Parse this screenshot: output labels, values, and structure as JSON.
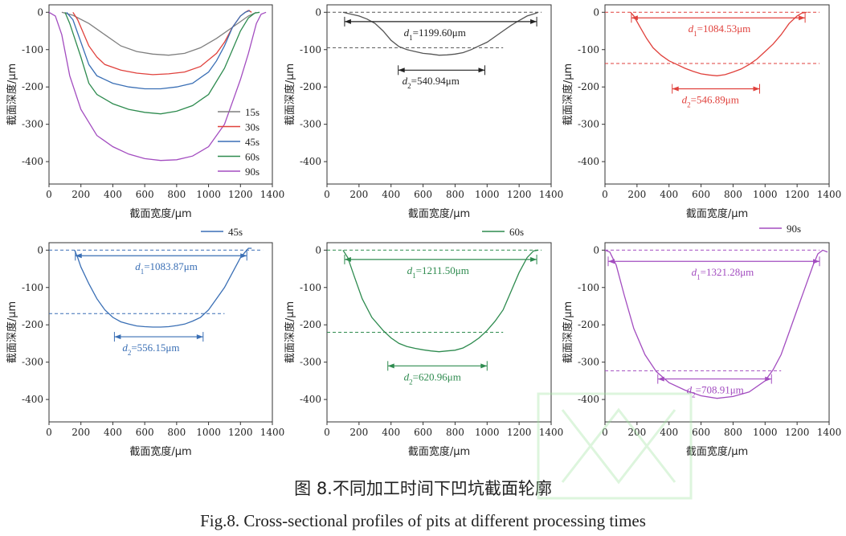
{
  "figure": {
    "caption_cn": "图 8.不同加工时间下凹坑截面轮廓",
    "caption_en": "Fig.8. Cross-sectional profiles of pits at different processing times"
  },
  "chart_data": [
    {
      "type": "line",
      "panel": "a",
      "xlabel": "截面宽度/μm",
      "ylabel": "截面深度/μm",
      "xlim": [
        0,
        1400
      ],
      "ylim": [
        -460,
        20
      ],
      "xticks": [
        0,
        200,
        400,
        600,
        800,
        1000,
        1200,
        1400
      ],
      "yticks": [
        0,
        -100,
        -200,
        -300,
        -400
      ],
      "legend": "inside-right",
      "series": [
        {
          "name": "15s",
          "color": "#7f7f7f",
          "x": [
            80,
            150,
            250,
            350,
            450,
            550,
            650,
            750,
            850,
            950,
            1050,
            1150,
            1250,
            1300
          ],
          "y": [
            0,
            -8,
            -30,
            -60,
            -90,
            -105,
            -112,
            -115,
            -110,
            -95,
            -70,
            -40,
            -10,
            0
          ]
        },
        {
          "name": "30s",
          "color": "#e0413c",
          "x": [
            150,
            180,
            250,
            300,
            350,
            450,
            550,
            650,
            750,
            850,
            950,
            1050,
            1100,
            1150,
            1200,
            1230,
            1250,
            1270
          ],
          "y": [
            0,
            -20,
            -90,
            -120,
            -140,
            -155,
            -163,
            -167,
            -165,
            -160,
            -145,
            -110,
            -80,
            -40,
            -10,
            0,
            5,
            0
          ]
        },
        {
          "name": "45s",
          "color": "#3a6fb5",
          "x": [
            110,
            150,
            200,
            250,
            300,
            400,
            500,
            600,
            700,
            800,
            900,
            1000,
            1050,
            1100,
            1150,
            1200,
            1230,
            1260
          ],
          "y": [
            0,
            -20,
            -80,
            -140,
            -170,
            -190,
            -200,
            -205,
            -205,
            -200,
            -190,
            -160,
            -130,
            -90,
            -40,
            -10,
            0,
            5
          ]
        },
        {
          "name": "60s",
          "color": "#2e8b4f",
          "x": [
            100,
            130,
            200,
            250,
            300,
            400,
            500,
            600,
            700,
            800,
            900,
            1000,
            1100,
            1150,
            1200,
            1250,
            1290,
            1320
          ],
          "y": [
            0,
            -30,
            -120,
            -190,
            -220,
            -245,
            -260,
            -268,
            -272,
            -265,
            -250,
            -220,
            -150,
            -100,
            -50,
            -15,
            -2,
            0
          ]
        },
        {
          "name": "90s",
          "color": "#a34dc0",
          "x": [
            0,
            40,
            80,
            130,
            200,
            300,
            400,
            500,
            600,
            700,
            800,
            900,
            1000,
            1100,
            1150,
            1200,
            1250,
            1300,
            1330,
            1360
          ],
          "y": [
            0,
            -10,
            -60,
            -170,
            -260,
            -330,
            -360,
            -380,
            -392,
            -397,
            -395,
            -385,
            -360,
            -300,
            -240,
            -180,
            -110,
            -30,
            -5,
            0
          ]
        }
      ],
      "y_tick_labels": [
        "0",
        "-100",
        "-200",
        "-300",
        "-400"
      ]
    },
    {
      "type": "line",
      "panel": "b",
      "xlabel": "截面宽度/μm",
      "ylabel": "截面深度/μm",
      "xlim": [
        0,
        1400
      ],
      "ylim": [
        -460,
        20
      ],
      "xticks": [
        0,
        200,
        400,
        600,
        800,
        1000,
        1200,
        1400
      ],
      "yticks": [
        0,
        -100,
        -200,
        -300,
        -400
      ],
      "series": [
        {
          "name": "",
          "color": "#555555",
          "x": [
            100,
            150,
            200,
            250,
            300,
            350,
            400,
            450,
            500,
            550,
            600,
            650,
            700,
            750,
            800,
            850,
            900,
            950,
            1000,
            1050,
            1100,
            1150,
            1200,
            1250,
            1300,
            1320
          ],
          "y": [
            0,
            -5,
            -10,
            -18,
            -30,
            -50,
            -75,
            -92,
            -100,
            -105,
            -110,
            -112,
            -115,
            -114,
            -112,
            -108,
            -100,
            -90,
            -80,
            -65,
            -50,
            -35,
            -22,
            -10,
            -3,
            0
          ]
        }
      ],
      "hlines": [
        {
          "y": 0,
          "x1": 0,
          "x2": 1340,
          "color": "#555555"
        },
        {
          "y": -95,
          "x1": 0,
          "x2": 1100,
          "color": "#555555"
        }
      ],
      "dims": [
        {
          "y": -25,
          "x1": 110,
          "x2": 1310,
          "label": "d1=1199.60μm",
          "lx": 480,
          "ly": -55,
          "color": "#222222"
        },
        {
          "y": -155,
          "x1": 445,
          "x2": 986,
          "label": "d2=540.94μm",
          "lx": 470,
          "ly": -185,
          "color": "#222222"
        }
      ],
      "y_tick_labels": [
        "0",
        "-100",
        "-200",
        "-300",
        "-400"
      ]
    },
    {
      "type": "line",
      "panel": "c",
      "xlabel": "截面宽度/μm",
      "ylabel": "截面深度/μm",
      "xlim": [
        0,
        1400
      ],
      "ylim": [
        -460,
        20
      ],
      "xticks": [
        0,
        200,
        400,
        600,
        800,
        1000,
        1200,
        1400
      ],
      "yticks": [
        0,
        -100,
        -200,
        -300,
        -400
      ],
      "series": [
        {
          "name": "",
          "color": "#e0413c",
          "x": [
            160,
            180,
            220,
            260,
            300,
            350,
            400,
            450,
            500,
            550,
            600,
            650,
            700,
            750,
            800,
            850,
            900,
            950,
            1000,
            1050,
            1100,
            1150,
            1200,
            1230,
            1260
          ],
          "y": [
            0,
            -10,
            -40,
            -70,
            -95,
            -115,
            -130,
            -140,
            -150,
            -158,
            -165,
            -168,
            -170,
            -167,
            -160,
            -152,
            -140,
            -125,
            -105,
            -85,
            -60,
            -30,
            -10,
            -2,
            0
          ]
        }
      ],
      "hlines": [
        {
          "y": 0,
          "x1": 0,
          "x2": 1340,
          "color": "#e0413c"
        },
        {
          "y": -137,
          "x1": 0,
          "x2": 1340,
          "color": "#e0413c"
        }
      ],
      "dims": [
        {
          "y": -15,
          "x1": 165,
          "x2": 1250,
          "label": "d1=1084.53μm",
          "lx": 520,
          "ly": -45,
          "color": "#e0413c"
        },
        {
          "y": -205,
          "x1": 420,
          "x2": 966,
          "label": "d2=546.89μm",
          "lx": 480,
          "ly": -235,
          "color": "#e0413c"
        }
      ],
      "y_tick_labels": [
        "0",
        "-100",
        "-200",
        "-300",
        "-400"
      ]
    },
    {
      "type": "line",
      "panel": "d",
      "xlabel": "截面宽度/μm",
      "ylabel": "截面深度/μm",
      "xlim": [
        0,
        1400
      ],
      "ylim": [
        -460,
        20
      ],
      "xticks": [
        0,
        200,
        400,
        600,
        800,
        1000,
        1200,
        1400
      ],
      "yticks": [
        0,
        -100,
        -200,
        -300,
        -400
      ],
      "legend_label": "45s",
      "series": [
        {
          "name": "45s",
          "color": "#3a6fb5",
          "x": [
            160,
            180,
            200,
            250,
            300,
            350,
            400,
            450,
            500,
            550,
            600,
            650,
            700,
            750,
            800,
            850,
            900,
            950,
            1000,
            1050,
            1100,
            1150,
            1200,
            1230,
            1250,
            1270
          ],
          "y": [
            0,
            -20,
            -45,
            -90,
            -130,
            -160,
            -180,
            -192,
            -198,
            -203,
            -205,
            -206,
            -206,
            -205,
            -202,
            -198,
            -190,
            -180,
            -160,
            -130,
            -100,
            -60,
            -20,
            -5,
            5,
            5
          ]
        }
      ],
      "hlines": [
        {
          "y": 0,
          "x1": 0,
          "x2": 1340,
          "color": "#3a6fb5"
        },
        {
          "y": -170,
          "x1": 0,
          "x2": 1100,
          "color": "#3a6fb5"
        }
      ],
      "dims": [
        {
          "y": -15,
          "x1": 165,
          "x2": 1240,
          "label": "d1=1083.87μm",
          "lx": 540,
          "ly": -45,
          "color": "#3a6fb5"
        },
        {
          "y": -232,
          "x1": 410,
          "x2": 966,
          "label": "d2=556.15μm",
          "lx": 460,
          "ly": -262,
          "color": "#3a6fb5"
        }
      ],
      "y_tick_labels": [
        "0",
        "-100",
        "-200",
        "-300",
        "-400"
      ]
    },
    {
      "type": "line",
      "panel": "e",
      "xlabel": "截面宽度/μm",
      "ylabel": "截面深度/μm",
      "xlim": [
        0,
        1400
      ],
      "ylim": [
        -460,
        20
      ],
      "xticks": [
        0,
        200,
        400,
        600,
        800,
        1000,
        1200,
        1400
      ],
      "yticks": [
        0,
        -100,
        -200,
        -300,
        -400
      ],
      "legend_label": "60s",
      "series": [
        {
          "name": "60s",
          "color": "#2e8b4f",
          "x": [
            100,
            130,
            170,
            220,
            280,
            350,
            400,
            450,
            500,
            550,
            600,
            650,
            700,
            750,
            800,
            850,
            900,
            950,
            1000,
            1050,
            1100,
            1150,
            1200,
            1250,
            1290,
            1320
          ],
          "y": [
            0,
            -20,
            -70,
            -130,
            -180,
            -215,
            -235,
            -250,
            -258,
            -263,
            -267,
            -270,
            -272,
            -270,
            -268,
            -262,
            -250,
            -235,
            -215,
            -190,
            -160,
            -110,
            -60,
            -20,
            -2,
            0
          ]
        }
      ],
      "hlines": [
        {
          "y": 0,
          "x1": 0,
          "x2": 1340,
          "color": "#2e8b4f"
        },
        {
          "y": -220,
          "x1": 0,
          "x2": 1100,
          "color": "#2e8b4f"
        }
      ],
      "dims": [
        {
          "y": -25,
          "x1": 110,
          "x2": 1310,
          "label": "d1=1211.50μm",
          "lx": 500,
          "ly": -55,
          "color": "#2e8b4f"
        },
        {
          "y": -310,
          "x1": 380,
          "x2": 1000,
          "label": "d2=620.96μm",
          "lx": 480,
          "ly": -340,
          "color": "#2e8b4f"
        }
      ],
      "y_tick_labels": [
        "0",
        "-100",
        "-200",
        "-300",
        "-400"
      ]
    },
    {
      "type": "line",
      "panel": "f",
      "xlabel": "截面宽度/μm",
      "ylabel": "截面深度/μm",
      "xlim": [
        0,
        1400
      ],
      "ylim": [
        -460,
        20
      ],
      "xticks": [
        0,
        200,
        400,
        600,
        800,
        1000,
        1200,
        1400
      ],
      "yticks": [
        0,
        -100,
        -200,
        -300,
        -400
      ],
      "legend_label": "90s",
      "series": [
        {
          "name": "90s",
          "color": "#a34dc0",
          "x": [
            0,
            30,
            70,
            120,
            180,
            250,
            320,
            400,
            500,
            600,
            700,
            800,
            900,
            1000,
            1050,
            1100,
            1150,
            1200,
            1250,
            1300,
            1330,
            1360,
            1390
          ],
          "y": [
            0,
            -5,
            -40,
            -120,
            -210,
            -280,
            -325,
            -355,
            -375,
            -390,
            -397,
            -392,
            -380,
            -350,
            -320,
            -280,
            -220,
            -160,
            -100,
            -40,
            -10,
            0,
            -5
          ]
        }
      ],
      "hlines": [
        {
          "y": 0,
          "x1": 0,
          "x2": 1340,
          "color": "#a34dc0"
        },
        {
          "y": -323,
          "x1": 0,
          "x2": 1100,
          "color": "#a34dc0"
        }
      ],
      "dims": [
        {
          "y": -30,
          "x1": 20,
          "x2": 1340,
          "label": "d1=1321.28μm",
          "lx": 540,
          "ly": -60,
          "color": "#a34dc0"
        },
        {
          "y": -345,
          "x1": 330,
          "x2": 1040,
          "label": "d2=708.91μm",
          "lx": 510,
          "ly": -375,
          "color": "#a34dc0"
        }
      ],
      "y_tick_labels": [
        "0",
        "-100",
        "-200",
        "-300",
        "-400"
      ]
    }
  ]
}
